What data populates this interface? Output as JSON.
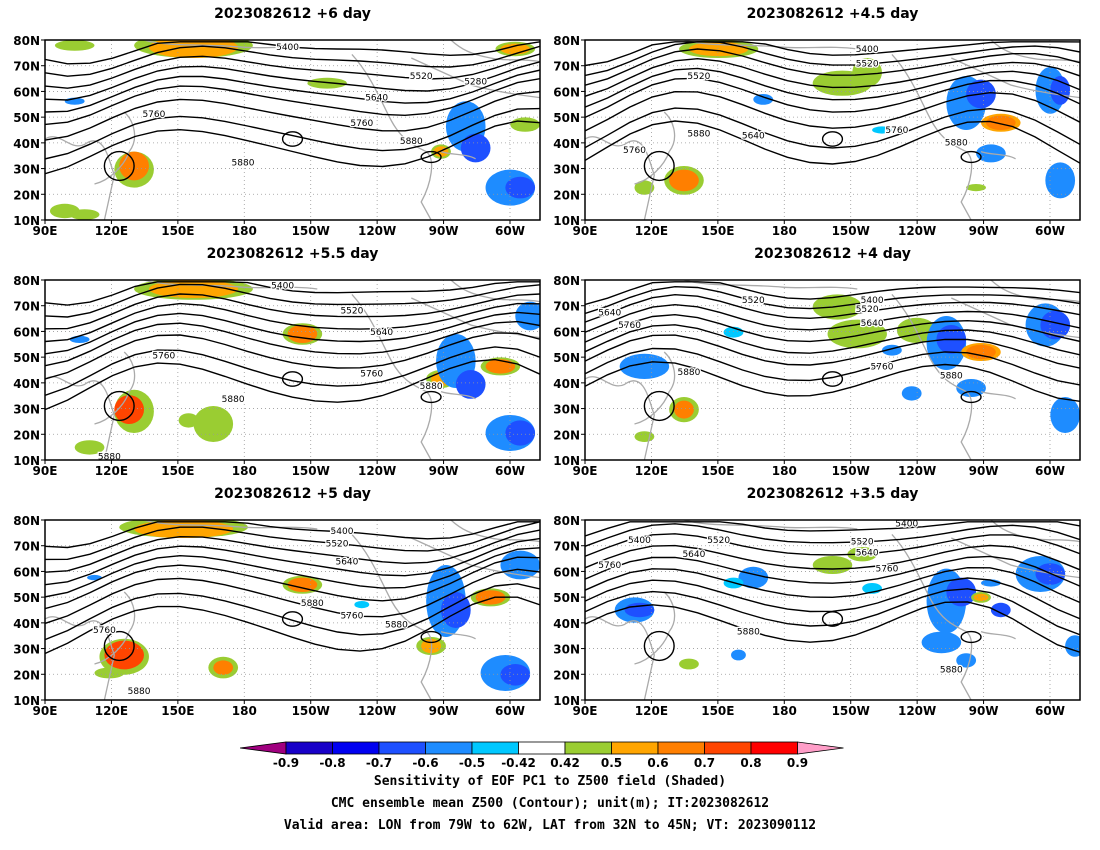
{
  "panels": [
    {
      "title": "2023082612  +6 day",
      "contours": [
        {
          "label": "5400"
        },
        {
          "label": "5520"
        },
        {
          "label": "5280"
        },
        {
          "label": "5640"
        },
        {
          "label": "5760"
        },
        {
          "label": "5760"
        },
        {
          "label": "5880"
        },
        {
          "label": "5880"
        }
      ]
    },
    {
      "title": "2023082612  +4.5 day",
      "contours": [
        {
          "label": "5400"
        },
        {
          "label": "5520"
        },
        {
          "label": "5520"
        },
        {
          "label": "5640"
        },
        {
          "label": "5760"
        },
        {
          "label": "5760"
        },
        {
          "label": "5880"
        },
        {
          "label": "5880"
        }
      ]
    },
    {
      "title": "2023082612  +5.5 day",
      "contours": [
        {
          "label": "5400"
        },
        {
          "label": "5520"
        },
        {
          "label": "5640"
        },
        {
          "label": "5760"
        },
        {
          "label": "5760"
        },
        {
          "label": "5880"
        },
        {
          "label": "5880"
        },
        {
          "label": "5880"
        }
      ]
    },
    {
      "title": "2023082612  +4 day",
      "contours": [
        {
          "label": "5400"
        },
        {
          "label": "5520"
        },
        {
          "label": "5520"
        },
        {
          "label": "5640"
        },
        {
          "label": "5640"
        },
        {
          "label": "5760"
        },
        {
          "label": "5760"
        },
        {
          "label": "5880"
        },
        {
          "label": "5880"
        }
      ]
    },
    {
      "title": "2023082612  +5 day",
      "contours": [
        {
          "label": "5400"
        },
        {
          "label": "5520"
        },
        {
          "label": "5640"
        },
        {
          "label": "5880"
        },
        {
          "label": "5760"
        },
        {
          "label": "5880"
        },
        {
          "label": "5760"
        },
        {
          "label": "5880"
        }
      ]
    },
    {
      "title": "2023082612  +3.5 day",
      "contours": [
        {
          "label": "5400"
        },
        {
          "label": "5400"
        },
        {
          "label": "5520"
        },
        {
          "label": "5520"
        },
        {
          "label": "5640"
        },
        {
          "label": "5640"
        },
        {
          "label": "5760"
        },
        {
          "label": "5760"
        },
        {
          "label": "5880"
        },
        {
          "label": "5880"
        }
      ]
    }
  ],
  "map": {
    "lon_labels": [
      "90E",
      "120E",
      "150E",
      "180",
      "150W",
      "120W",
      "90W",
      "60W"
    ],
    "lat_labels": [
      "80N",
      "70N",
      "60N",
      "50N",
      "40N",
      "30N",
      "20N",
      "10N"
    ]
  },
  "colorbar": {
    "colors": [
      "#a0007f",
      "#1800c8",
      "#0000f0",
      "#1e50ff",
      "#1e8cff",
      "#00c8ff",
      "#ffffff",
      "#9acd32",
      "#ffa500",
      "#ff7f00",
      "#ff4500",
      "#ff0000",
      "#ff9ec8"
    ],
    "labels": [
      "-0.9",
      "-0.8",
      "-0.7",
      "-0.6",
      "-0.5",
      "-0.42",
      "0.42",
      "0.5",
      "0.6",
      "0.7",
      "0.8",
      "0.9"
    ]
  },
  "captions": [
    "Sensitivity of EOF PC1 to Z500 field (Shaded)",
    "CMC ensemble mean Z500 (Contour); unit(m); IT:2023082612",
    "Valid area: LON from 79W to 62W, LAT from 32N to 45N; VT: 2023090112"
  ]
}
